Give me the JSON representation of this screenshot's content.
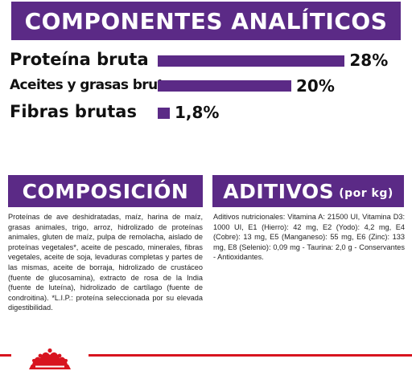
{
  "header": {
    "title": "COMPONENTES ANALÍTICOS"
  },
  "nutrients": [
    {
      "label": "Proteína bruta",
      "value": "28%",
      "percent": 28
    },
    {
      "label": "Aceites y grasas brutos",
      "value": "20%",
      "percent": 20
    },
    {
      "label": "Fibras brutas",
      "value": "1,8%",
      "percent": 1.8
    }
  ],
  "composition": {
    "title": "COMPOSICIÓN",
    "text": "Proteínas de ave deshidratadas, maíz, harina de maíz, grasas animales, trigo, arroz, hidrolizado de proteínas animales, gluten de maíz, pulpa de remolacha, aislado de proteínas vegetales*, aceite de pescado, minerales, fibras vegetales, aceite de soja, levaduras completas y partes de las mismas, aceite de borraja, hidrolizado de crustáceo (fuente de glucosamina), extracto de rosa de la India (fuente de luteína), hidrolizado de cartílago (fuente de condroitina). *L.I.P.: proteína seleccionada por su elevada digestibilidad."
  },
  "additives": {
    "title": "ADITIVOS",
    "unit": "(por kg)",
    "text": "Aditivos nutricionales: Vitamina A: 21500 UI, Vitamina D3: 1000 UI, E1 (Hierro): 42 mg, E2 (Yodo): 4,2 mg, E4 (Cobre): 13 mg, E5 (Manganeso): 55 mg, E6 (Zinc): 133 mg, E8 (Selenio): 0,09 mg - Taurina: 2,0 g - Conservantes - Antioxidantes."
  },
  "colors": {
    "accent": "#5b2a86",
    "brand_red": "#d8141f"
  },
  "footer": {
    "logo": "royal-canin-crown-icon"
  }
}
